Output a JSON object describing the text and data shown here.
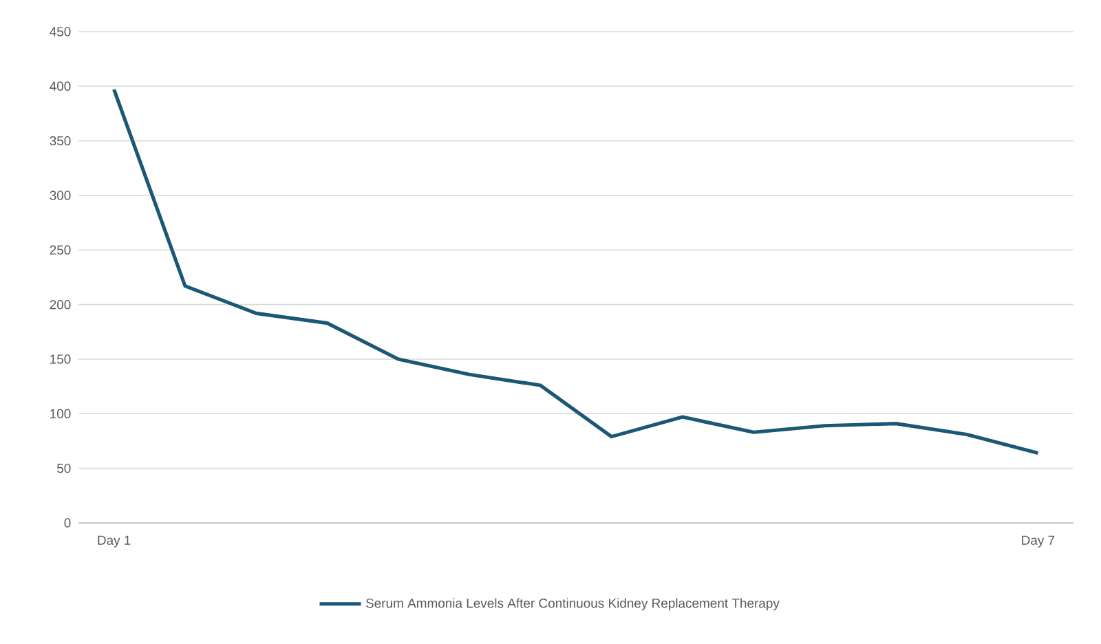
{
  "chart_data": {
    "type": "line",
    "categories": [
      "Day 1",
      null,
      null,
      null,
      null,
      null,
      null,
      null,
      null,
      null,
      null,
      null,
      null,
      "Day 7"
    ],
    "series": [
      {
        "name": "Serum Ammonia Levels After Continuous Kidney Replacement Therapy",
        "color": "#1b5875",
        "values": [
          397,
          217,
          192,
          183,
          150,
          136,
          126,
          79,
          97,
          83,
          89,
          91,
          81,
          64
        ]
      }
    ],
    "ylim": [
      0,
      450
    ],
    "yticks": [
      0,
      50,
      100,
      150,
      200,
      250,
      300,
      350,
      400,
      450
    ],
    "grid": "y",
    "legend": "bottom",
    "marker": "none",
    "line_style": "solid"
  }
}
